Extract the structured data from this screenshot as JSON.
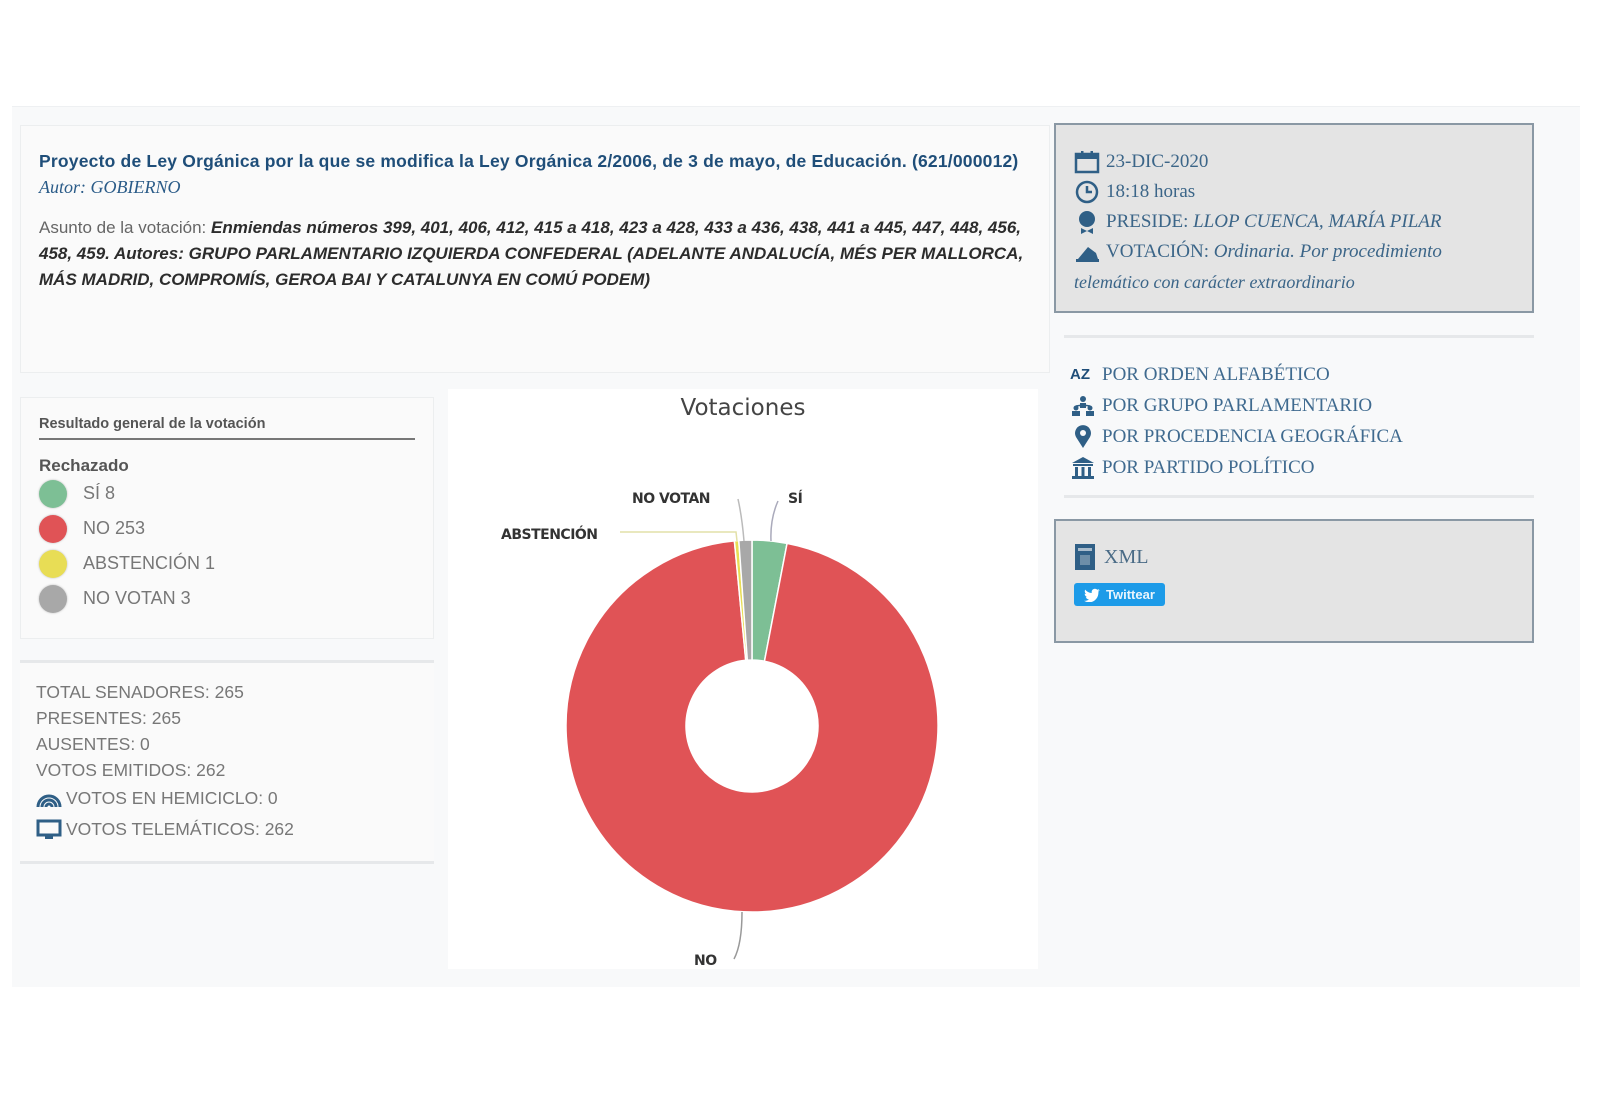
{
  "header": {
    "title": "Proyecto de Ley Orgánica por la que se modifica la Ley Orgánica 2/2006, de 3 de mayo, de Educación. (621/000012)",
    "autor": "Autor: GOBIERNO",
    "asunto_label": "Asunto de la votación:",
    "asunto_value": "Enmiendas números 399, 401, 406, 412, 415 a 418, 423 a 428, 433 a 436, 438, 441 a 445, 447, 448, 456, 458, 459. Autores: GRUPO PARLAMENTARIO IZQUIERDA CONFEDERAL (ADELANTE ANDALUCÍA, MÉS PER MALLORCA, MÁS MADRID, COMPROMÍS, GEROA BAI Y CATALUNYA EN COMÚ PODEM)"
  },
  "result": {
    "heading": "Resultado general de la votación",
    "status": "Rechazado",
    "legend": [
      {
        "label": "SÍ 8",
        "color": "#7dbf95"
      },
      {
        "label": "NO 253",
        "color": "#e05356"
      },
      {
        "label": "ABSTENCIÓN 1",
        "color": "#e8dd55"
      },
      {
        "label": "NO VOTAN 3",
        "color": "#a8a8a8"
      }
    ]
  },
  "stats": {
    "total": "TOTAL SENADORES: 265",
    "presentes": "PRESENTES: 265",
    "ausentes": "AUSENTES: 0",
    "emitidos": "VOTOS EMITIDOS: 262",
    "hemiciclo": "VOTOS EN HEMICICLO: 0",
    "telematicos": "VOTOS TELEMÁTICOS: 262"
  },
  "info": {
    "date": "23-DIC-2020",
    "time": "18:18 horas",
    "preside_label": "PRESIDE:",
    "preside_value": "LLOP CUENCA, MARÍA PILAR",
    "votacion_label": "VOTACIÓN:",
    "votacion_value": "Ordinaria. Por procedimiento",
    "votacion_cont": "telemático con carácter extraordinario"
  },
  "order_links": [
    {
      "label": "POR ORDEN ALFABÉTICO",
      "icon": "az-icon"
    },
    {
      "label": "POR GRUPO PARLAMENTARIO",
      "icon": "group-icon"
    },
    {
      "label": "POR PROCEDENCIA GEOGRÁFICA",
      "icon": "map-pin-icon"
    },
    {
      "label": "POR PARTIDO POLÍTICO",
      "icon": "institution-icon"
    }
  ],
  "share": {
    "xml_label": "XML",
    "twitter_label": "Twittear"
  },
  "chart_data": {
    "type": "pie",
    "title": "Votaciones",
    "categories": [
      "SÍ",
      "NO",
      "ABSTENCIÓN",
      "NO VOTAN"
    ],
    "values": [
      8,
      253,
      1,
      3
    ],
    "colors": [
      "#7dbf95",
      "#e05356",
      "#e8dd55",
      "#a8a8a8"
    ],
    "donut": true,
    "labels": [
      "SÍ",
      "NO",
      "ABSTENCIÓN",
      "NO VOTAN"
    ]
  }
}
